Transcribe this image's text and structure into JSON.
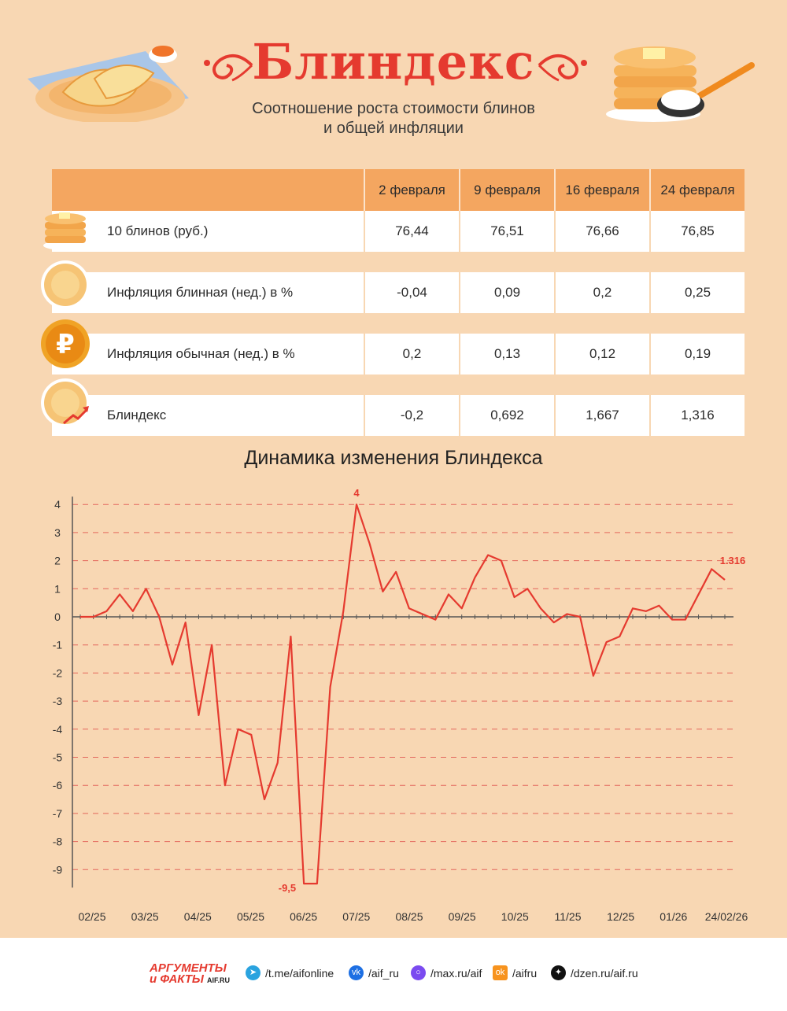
{
  "header": {
    "title": "Блиндекс",
    "subtitle_line1": "Соотношение роста стоимости блинов",
    "subtitle_line2": "и общей инфляции"
  },
  "table": {
    "columns": [
      "2 февраля",
      "9 февраля",
      "16 февраля",
      "24 февраля"
    ],
    "rows": [
      {
        "label": "10 блинов (руб.)",
        "values": [
          "76,44",
          "76,51",
          "76,66",
          "76,85"
        ],
        "icon": "pancake-stack-icon"
      },
      {
        "label": "Инфляция блинная (нед.) в %",
        "values": [
          "-0,04",
          "0,09",
          "0,2",
          "0,25"
        ],
        "icon": "pancake-icon"
      },
      {
        "label": "Инфляция обычная (нед.) в %",
        "values": [
          "0,2",
          "0,13",
          "0,12",
          "0,19"
        ],
        "icon": "ruble-coin-icon"
      },
      {
        "label": "Блиндекс",
        "values": [
          "-0,2",
          "0,692",
          "1,667",
          "1,316"
        ],
        "icon": "pancake-growth-icon"
      }
    ]
  },
  "chart_title": "Динамика изменения Блиндекса",
  "chart_data": {
    "type": "line",
    "color": "#e53a2f",
    "ylim": [
      -9.5,
      4
    ],
    "yticks": [
      "4",
      "3",
      "2",
      "1",
      "0",
      "-1",
      "-2",
      "-3",
      "-4",
      "-5",
      "-6",
      "-7",
      "-8",
      "-9"
    ],
    "xtick_labels": [
      "02/25",
      "03/25",
      "04/25",
      "05/25",
      "06/25",
      "07/25",
      "08/25",
      "09/25",
      "10/25",
      "11/25",
      "12/25",
      "01/26",
      "24/02/26"
    ],
    "values": [
      0,
      0,
      0.2,
      0.8,
      0.2,
      1.0,
      0,
      -1.7,
      -0.2,
      -3.5,
      -1.0,
      -6.0,
      -4.0,
      -4.2,
      -6.5,
      -5.2,
      -0.7,
      -9.5,
      -9.5,
      -2.5,
      0.2,
      4.0,
      2.6,
      0.9,
      1.6,
      0.3,
      0.1,
      -0.1,
      0.8,
      0.3,
      1.4,
      2.2,
      2.0,
      0.7,
      1.0,
      0.3,
      -0.2,
      0.1,
      0,
      -2.1,
      -0.9,
      -0.7,
      0.3,
      0.2,
      0.4,
      -0.1,
      -0.1,
      0.8,
      1.7,
      1.316
    ],
    "annotations": [
      {
        "text": "4",
        "index": 21
      },
      {
        "text": "-9,5",
        "index": 17
      },
      {
        "text": "1.316",
        "index": 49
      }
    ],
    "grid": "dashed horizontal"
  },
  "footer": {
    "brand_line1": "АРГУМЕНТЫ",
    "brand_line2": "и ФАКТЫ",
    "brand_site": "AIF.RU",
    "links": [
      "/t.me/aifonline",
      "/aif_ru",
      "/max.ru/aif",
      "/aifru",
      "/dzen.ru/aif.ru"
    ],
    "link_colors": [
      "#2aa3df",
      "#1d6fe3",
      "#7b4bf0",
      "#f7931e",
      "#111111"
    ]
  }
}
